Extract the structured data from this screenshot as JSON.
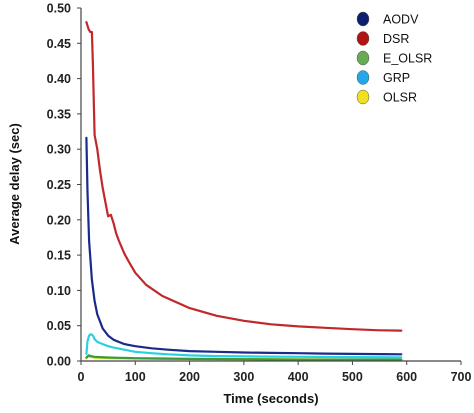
{
  "chart_data": {
    "type": "line",
    "title": "",
    "xlabel": "Time (seconds)",
    "ylabel": "Average delay (sec)",
    "xlim": [
      0,
      700
    ],
    "ylim": [
      0,
      0.5
    ],
    "xticks": [
      "0",
      "100",
      "200",
      "300",
      "400",
      "500",
      "600",
      "700"
    ],
    "yticks": [
      "0.00",
      "0.05",
      "0.10",
      "0.15",
      "0.20",
      "0.25",
      "0.30",
      "0.35",
      "0.40",
      "0.45",
      "0.50"
    ],
    "grid": false,
    "legend_position": "top-right",
    "series": [
      {
        "name": "AODV",
        "color": "#1a2a8a",
        "marker_color": "#0d1f6e",
        "x": [
          10,
          12,
          15,
          20,
          25,
          30,
          40,
          50,
          60,
          80,
          100,
          130,
          160,
          200,
          250,
          300,
          350,
          400,
          450,
          500,
          550,
          590
        ],
        "y": [
          0.316,
          0.24,
          0.17,
          0.115,
          0.085,
          0.066,
          0.046,
          0.036,
          0.03,
          0.024,
          0.021,
          0.018,
          0.016,
          0.014,
          0.013,
          0.012,
          0.0115,
          0.011,
          0.0105,
          0.01,
          0.0098,
          0.0095
        ]
      },
      {
        "name": "DSR",
        "color": "#c0282a",
        "marker_color": "#b01515",
        "x": [
          10,
          14,
          17,
          20,
          22,
          25,
          30,
          35,
          40,
          45,
          50,
          55,
          60,
          65,
          70,
          80,
          90,
          100,
          120,
          150,
          200,
          250,
          300,
          350,
          400,
          450,
          500,
          550,
          590
        ],
        "y": [
          0.48,
          0.47,
          0.466,
          0.466,
          0.42,
          0.32,
          0.3,
          0.27,
          0.245,
          0.225,
          0.205,
          0.207,
          0.195,
          0.18,
          0.17,
          0.152,
          0.138,
          0.125,
          0.108,
          0.092,
          0.075,
          0.064,
          0.057,
          0.052,
          0.049,
          0.047,
          0.045,
          0.0435,
          0.043
        ]
      },
      {
        "name": "E_OLSR",
        "color": "#3c9a3c",
        "marker_color": "#6aaa55",
        "x": [
          10,
          14,
          18,
          25,
          35,
          50,
          70,
          100,
          150,
          200,
          300,
          400,
          500,
          590
        ],
        "y": [
          0.005,
          0.008,
          0.007,
          0.006,
          0.0055,
          0.005,
          0.0045,
          0.004,
          0.0035,
          0.003,
          0.0025,
          0.002,
          0.002,
          0.002
        ]
      },
      {
        "name": "GRP",
        "color": "#2ad0e0",
        "marker_color": "#22a8e8",
        "x": [
          10,
          12,
          15,
          18,
          22,
          25,
          30,
          40,
          50,
          60,
          80,
          100,
          130,
          160,
          200,
          250,
          300,
          400,
          500,
          590
        ],
        "y": [
          0.01,
          0.028,
          0.036,
          0.038,
          0.036,
          0.031,
          0.027,
          0.024,
          0.021,
          0.019,
          0.016,
          0.013,
          0.011,
          0.0095,
          0.008,
          0.007,
          0.0065,
          0.006,
          0.0055,
          0.0052
        ]
      },
      {
        "name": "OLSR",
        "color": "#c8d800",
        "marker_color": "#f0e020",
        "x": [
          10,
          14,
          18,
          25,
          40,
          60,
          100,
          150,
          200,
          300,
          400,
          500,
          590
        ],
        "y": [
          0.004,
          0.007,
          0.006,
          0.005,
          0.0045,
          0.004,
          0.0035,
          0.003,
          0.0028,
          0.0025,
          0.0022,
          0.002,
          0.002
        ]
      }
    ]
  }
}
